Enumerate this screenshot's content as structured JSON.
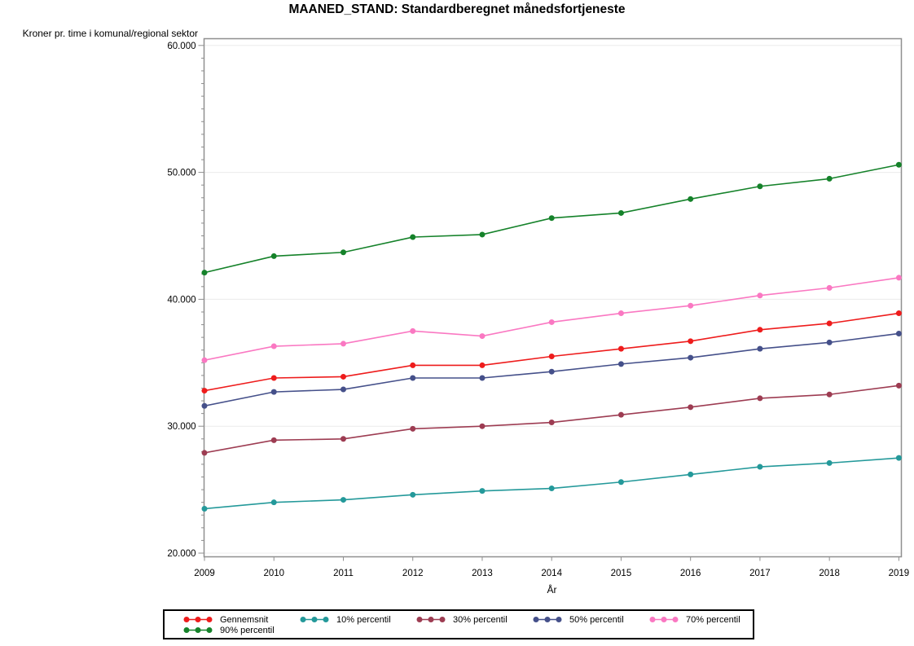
{
  "chart_data": {
    "type": "line",
    "title": "MAANED_STAND: Standardberegnet månedsfortjeneste",
    "ylabel": "Kroner pr. time i komunal/regional sektor",
    "xlabel": "År",
    "x_categories": [
      "2009",
      "2010",
      "2011",
      "2012",
      "2013",
      "2014",
      "2015",
      "2016",
      "2017",
      "2018",
      "2019"
    ],
    "ylim": [
      20000,
      60000
    ],
    "yticks": [
      {
        "value": 20000,
        "label": "20.000"
      },
      {
        "value": 30000,
        "label": "30.000"
      },
      {
        "value": 40000,
        "label": "40.000"
      },
      {
        "value": 50000,
        "label": "50.000"
      },
      {
        "value": 60000,
        "label": "60.000"
      }
    ],
    "y_minor_step": 1000,
    "grid": true,
    "legend_position": "bottom",
    "series": [
      {
        "name": "Gennemsnit",
        "color": "#ee1c1c",
        "values": [
          32800,
          33800,
          33900,
          34800,
          34800,
          35500,
          36100,
          36700,
          37600,
          38100,
          38900
        ]
      },
      {
        "name": "10% percentil",
        "color": "#24999a",
        "values": [
          23500,
          24000,
          24200,
          24600,
          24900,
          25100,
          25600,
          26200,
          26800,
          27100,
          27500
        ]
      },
      {
        "name": "30% percentil",
        "color": "#9d3c52",
        "values": [
          27900,
          28900,
          29000,
          29800,
          30000,
          30300,
          30900,
          31500,
          32200,
          32500,
          33200
        ]
      },
      {
        "name": "50% percentil",
        "color": "#45508a",
        "values": [
          31600,
          32700,
          32900,
          33800,
          33800,
          34300,
          34900,
          35400,
          36100,
          36600,
          37300
        ]
      },
      {
        "name": "70% percentil",
        "color": "#fa78c2",
        "values": [
          35200,
          36300,
          36500,
          37500,
          37100,
          38200,
          38900,
          39500,
          40300,
          40900,
          41700
        ]
      },
      {
        "name": "90% percentil",
        "color": "#15822a",
        "values": [
          42100,
          43400,
          43700,
          44900,
          45100,
          46400,
          46800,
          47900,
          48900,
          49500,
          50600
        ]
      }
    ],
    "colors": {
      "gridline": "#ececec",
      "frame": "#8f8f8f",
      "tick": "#8f8f8f",
      "tick_label": "#000000"
    }
  }
}
